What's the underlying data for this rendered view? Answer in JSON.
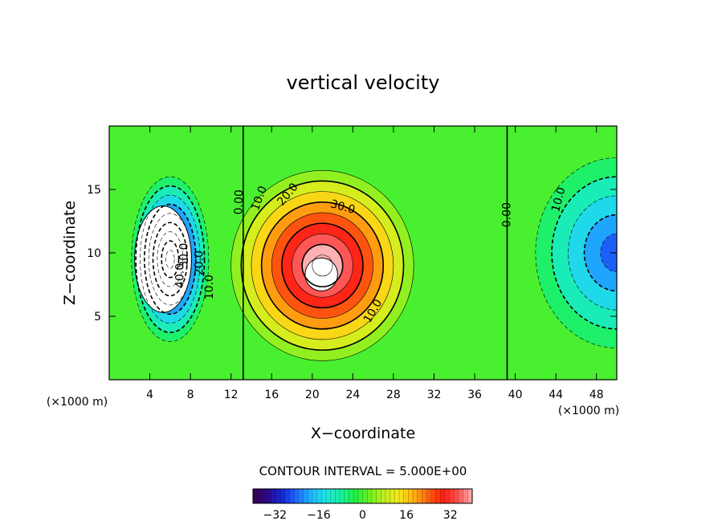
{
  "chart_data": {
    "type": "heatmap",
    "title": "vertical velocity",
    "xlabel": "X−coordinate",
    "ylabel": "Z−coordinate",
    "x_unit": "(×1000 m)",
    "y_unit": "(×1000 m)",
    "xlim": [
      0,
      50
    ],
    "ylim": [
      0,
      20
    ],
    "x_ticks": [
      4,
      8,
      12,
      16,
      20,
      24,
      28,
      32,
      36,
      40,
      44,
      48
    ],
    "x_tick_labels": [
      "4",
      "8",
      "12",
      "16",
      "20",
      "24",
      "28",
      "32",
      "36",
      "40",
      "44",
      "48"
    ],
    "y_ticks": [
      5,
      10,
      15
    ],
    "y_tick_labels": [
      "5",
      "10",
      "15"
    ],
    "contour_interval_text": "CONTOUR INTERVAL = 5.000E+00",
    "contour_interval": 5.0,
    "colorbar": {
      "min": -40,
      "max": 40,
      "ticks": [
        -32,
        -16,
        0,
        16,
        32
      ],
      "tick_labels": [
        "−32",
        "−16",
        "0",
        "16",
        "32"
      ],
      "colors": [
        "#3a004a",
        "#2a0a8c",
        "#1428d8",
        "#1e6cff",
        "#20b8ff",
        "#1ee6e0",
        "#18f0a0",
        "#22f040",
        "#70f020",
        "#c0f020",
        "#f8e818",
        "#ffb010",
        "#ff6010",
        "#ff2010",
        "#ff5050",
        "#ffb0b0"
      ]
    },
    "cores": [
      {
        "x": 6,
        "z": 9.5,
        "value": -45,
        "rx": 3.8,
        "rz": 6.5,
        "sign": -1
      },
      {
        "x": 21,
        "z": 9.0,
        "value": 42,
        "rx": 9.0,
        "rz": 7.5,
        "sign": 1
      },
      {
        "x": 50,
        "z": 10.0,
        "value": -25,
        "rx": 8.0,
        "rz": 7.5,
        "sign": -1
      }
    ],
    "contour_labels": [
      {
        "text": "0.00",
        "x": 12.8,
        "z": 14.0,
        "angle": -88
      },
      {
        "text": "10.0",
        "x": 14.8,
        "z": 14.3,
        "angle": -70
      },
      {
        "text": "20.0",
        "x": 17.6,
        "z": 14.6,
        "angle": -50
      },
      {
        "text": "30.0",
        "x": 23.0,
        "z": 13.6,
        "angle": 15
      },
      {
        "text": "10.0",
        "x": 26.0,
        "z": 5.4,
        "angle": -60
      },
      {
        "text": "0.00",
        "x": 39.2,
        "z": 13.0,
        "angle": -90
      },
      {
        "text": "10.0",
        "x": 44.3,
        "z": 14.2,
        "angle": -75
      },
      {
        "text": "10.0",
        "x": 9.9,
        "z": 7.3,
        "angle": -90
      },
      {
        "text": "20.0",
        "x": 8.9,
        "z": 9.2,
        "angle": -90
      },
      {
        "text": "30.0",
        "x": 7.4,
        "z": 9.8,
        "angle": -90
      },
      {
        "text": "40.0",
        "x": 7.0,
        "z": 8.2,
        "angle": -90
      }
    ],
    "blanked_regions": [
      {
        "x": 5.3,
        "z": 9.5,
        "rx": 2.8,
        "rz": 4.2
      },
      {
        "x": 20.9,
        "z": 8.3,
        "rx": 1.6,
        "rz": 1.3
      }
    ]
  }
}
